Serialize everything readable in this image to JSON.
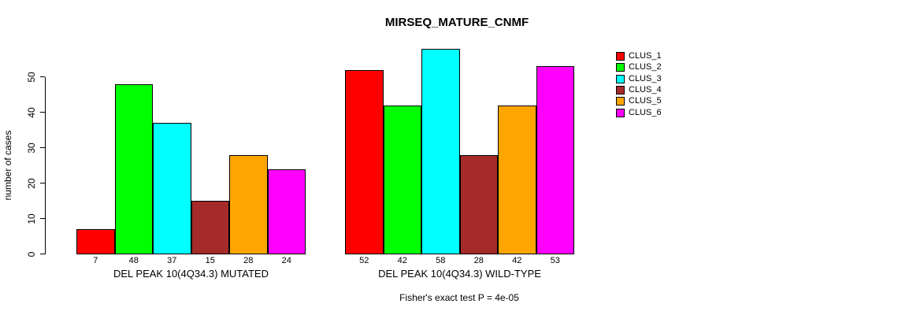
{
  "chart_data": {
    "type": "bar",
    "title": "MIRSEQ_MATURE_CNMF",
    "ylabel": "number of cases",
    "xlabel": "",
    "ylim": [
      0,
      58
    ],
    "yticks": [
      0,
      10,
      20,
      30,
      40,
      50
    ],
    "grid": false,
    "legend_position": "right",
    "legend": [
      {
        "label": "CLUS_1",
        "color": "#ff0000"
      },
      {
        "label": "CLUS_2",
        "color": "#00ff00"
      },
      {
        "label": "CLUS_3",
        "color": "#00ffff"
      },
      {
        "label": "CLUS_4",
        "color": "#a52a2a"
      },
      {
        "label": "CLUS_5",
        "color": "#ffa500"
      },
      {
        "label": "CLUS_6",
        "color": "#ff00ff"
      }
    ],
    "series_colors": [
      "#ff0000",
      "#00ff00",
      "#00ffff",
      "#a52a2a",
      "#ffa500",
      "#ff00ff"
    ],
    "groups": [
      {
        "label": "DEL PEAK 10(4Q34.3) MUTATED",
        "values": [
          7,
          48,
          37,
          15,
          28,
          24
        ],
        "bar_labels": [
          "7",
          "48",
          "37",
          "15",
          "28",
          "24"
        ]
      },
      {
        "label": "DEL PEAK 10(4Q34.3) WILD-TYPE",
        "values": [
          52,
          42,
          58,
          28,
          42,
          53
        ],
        "bar_labels": [
          "52",
          "42",
          "58",
          "28",
          "42",
          "53"
        ]
      }
    ],
    "annotation": "Fisher's exact test P = 4e-05"
  }
}
